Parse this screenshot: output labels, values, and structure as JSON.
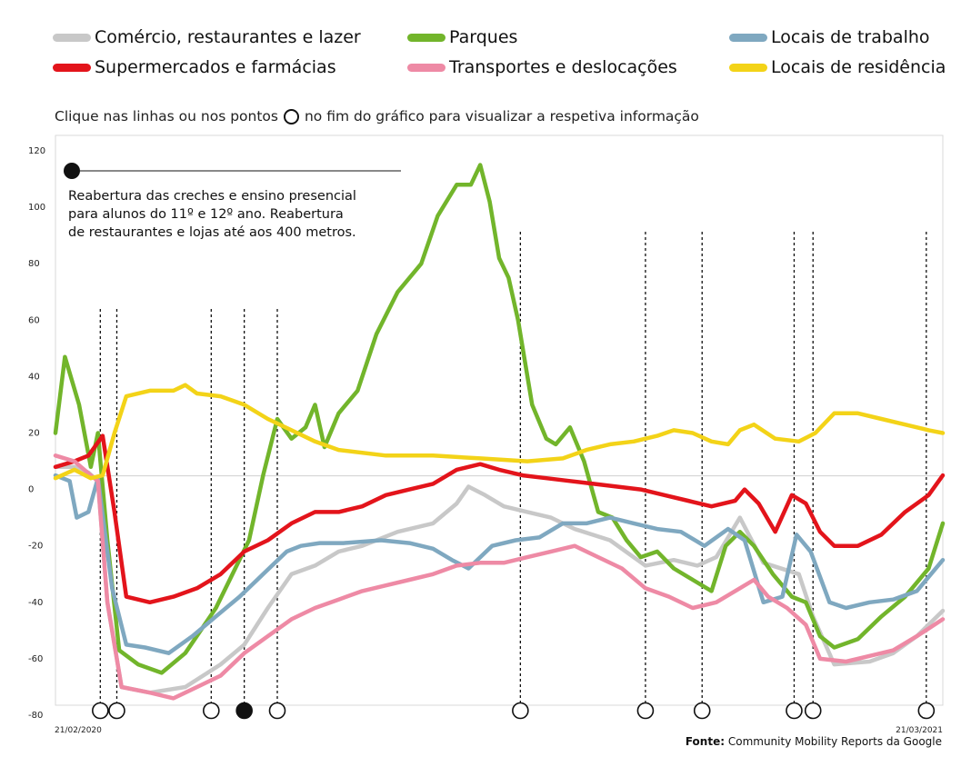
{
  "legend": [
    {
      "label": "Comércio, restaurantes e lazer",
      "color": "#c8c8c8"
    },
    {
      "label": "Parques",
      "color": "#72b52b"
    },
    {
      "label": "Locais de trabalho",
      "color": "#7fa8c0"
    },
    {
      "label": "Supermercados e farmácias",
      "color": "#e3141b"
    },
    {
      "label": "Transportes e deslocações",
      "color": "#ee8aa5"
    },
    {
      "label": "Locais de residência",
      "color": "#f3d318"
    }
  ],
  "instruction": {
    "before": "Clique nas linhas ou nos pontos",
    "after": "no fim do gráfico para visualizar a respetiva informação"
  },
  "annotation": {
    "lines": [
      "Reabertura das creches e ensino presencial",
      "para alunos do 11º e 12º ano. Reabertura",
      "de restaurantes e lojas até aos 400 metros."
    ]
  },
  "source": {
    "label": "Fonte:",
    "text": "Community Mobility Reports da Google"
  },
  "chart_data": {
    "type": "line",
    "ylim": [
      -80,
      120
    ],
    "yticks": [
      "120",
      "100",
      "80",
      "60",
      "40",
      "20",
      "0",
      "-20",
      "-40",
      "-60",
      "-80"
    ],
    "x_start_label": "21/02/2020",
    "x_end_label": "21/03/2021",
    "event_markers_day": [
      19,
      26,
      66,
      80,
      94,
      197,
      250,
      274,
      313,
      321,
      369
    ],
    "selected_marker_index": 3,
    "series": [
      {
        "name": "Comércio, restaurantes e lazer",
        "color": "#c8c8c8",
        "points": [
          [
            0,
            8
          ],
          [
            8,
            8
          ],
          [
            14,
            6
          ],
          [
            18,
            3
          ],
          [
            22,
            -40
          ],
          [
            28,
            -70
          ],
          [
            40,
            -72
          ],
          [
            55,
            -70
          ],
          [
            70,
            -62
          ],
          [
            80,
            -55
          ],
          [
            90,
            -42
          ],
          [
            100,
            -30
          ],
          [
            110,
            -27
          ],
          [
            120,
            -22
          ],
          [
            130,
            -20
          ],
          [
            145,
            -15
          ],
          [
            160,
            -12
          ],
          [
            170,
            -5
          ],
          [
            175,
            1
          ],
          [
            182,
            -2
          ],
          [
            190,
            -6
          ],
          [
            200,
            -8
          ],
          [
            210,
            -10
          ],
          [
            220,
            -14
          ],
          [
            235,
            -18
          ],
          [
            250,
            -27
          ],
          [
            262,
            -25
          ],
          [
            272,
            -27
          ],
          [
            280,
            -24
          ],
          [
            290,
            -10
          ],
          [
            300,
            -26
          ],
          [
            315,
            -30
          ],
          [
            321,
            -45
          ],
          [
            330,
            -62
          ],
          [
            345,
            -61
          ],
          [
            355,
            -58
          ],
          [
            365,
            -52
          ],
          [
            376,
            -43
          ]
        ]
      },
      {
        "name": "Parques",
        "color": "#72b52b",
        "points": [
          [
            0,
            20
          ],
          [
            4,
            47
          ],
          [
            10,
            30
          ],
          [
            15,
            8
          ],
          [
            18,
            20
          ],
          [
            22,
            -18
          ],
          [
            27,
            -57
          ],
          [
            35,
            -62
          ],
          [
            45,
            -65
          ],
          [
            55,
            -58
          ],
          [
            68,
            -42
          ],
          [
            75,
            -30
          ],
          [
            82,
            -18
          ],
          [
            88,
            5
          ],
          [
            94,
            25
          ],
          [
            100,
            18
          ],
          [
            106,
            22
          ],
          [
            110,
            30
          ],
          [
            114,
            15
          ],
          [
            120,
            27
          ],
          [
            128,
            35
          ],
          [
            136,
            55
          ],
          [
            145,
            70
          ],
          [
            155,
            80
          ],
          [
            162,
            97
          ],
          [
            170,
            108
          ],
          [
            176,
            108
          ],
          [
            180,
            115
          ],
          [
            184,
            102
          ],
          [
            188,
            82
          ],
          [
            192,
            75
          ],
          [
            196,
            60
          ],
          [
            202,
            30
          ],
          [
            208,
            18
          ],
          [
            212,
            16
          ],
          [
            218,
            22
          ],
          [
            224,
            10
          ],
          [
            230,
            -8
          ],
          [
            236,
            -10
          ],
          [
            242,
            -18
          ],
          [
            248,
            -24
          ],
          [
            255,
            -22
          ],
          [
            262,
            -28
          ],
          [
            270,
            -32
          ],
          [
            278,
            -36
          ],
          [
            284,
            -20
          ],
          [
            290,
            -15
          ],
          [
            296,
            -20
          ],
          [
            304,
            -30
          ],
          [
            312,
            -38
          ],
          [
            318,
            -40
          ],
          [
            324,
            -52
          ],
          [
            330,
            -56
          ],
          [
            340,
            -53
          ],
          [
            350,
            -45
          ],
          [
            360,
            -38
          ],
          [
            370,
            -28
          ],
          [
            376,
            -12
          ]
        ]
      },
      {
        "name": "Locais de trabalho",
        "color": "#7fa8c0",
        "points": [
          [
            0,
            5
          ],
          [
            6,
            3
          ],
          [
            9,
            -10
          ],
          [
            14,
            -8
          ],
          [
            18,
            4
          ],
          [
            24,
            -35
          ],
          [
            30,
            -55
          ],
          [
            38,
            -56
          ],
          [
            48,
            -58
          ],
          [
            58,
            -52
          ],
          [
            68,
            -45
          ],
          [
            78,
            -38
          ],
          [
            88,
            -30
          ],
          [
            98,
            -22
          ],
          [
            104,
            -20
          ],
          [
            112,
            -19
          ],
          [
            122,
            -19
          ],
          [
            138,
            -18
          ],
          [
            150,
            -19
          ],
          [
            160,
            -21
          ],
          [
            168,
            -25
          ],
          [
            175,
            -28
          ],
          [
            185,
            -20
          ],
          [
            195,
            -18
          ],
          [
            205,
            -17
          ],
          [
            215,
            -12
          ],
          [
            225,
            -12
          ],
          [
            235,
            -10
          ],
          [
            245,
            -12
          ],
          [
            255,
            -14
          ],
          [
            265,
            -15
          ],
          [
            275,
            -20
          ],
          [
            285,
            -14
          ],
          [
            292,
            -18
          ],
          [
            300,
            -40
          ],
          [
            308,
            -38
          ],
          [
            314,
            -16
          ],
          [
            320,
            -22
          ],
          [
            328,
            -40
          ],
          [
            335,
            -42
          ],
          [
            345,
            -40
          ],
          [
            355,
            -39
          ],
          [
            365,
            -36
          ],
          [
            376,
            -25
          ]
        ]
      },
      {
        "name": "Supermercados e farmácias",
        "color": "#e3141b",
        "points": [
          [
            0,
            8
          ],
          [
            8,
            10
          ],
          [
            14,
            12
          ],
          [
            20,
            19
          ],
          [
            25,
            -8
          ],
          [
            30,
            -38
          ],
          [
            40,
            -40
          ],
          [
            50,
            -38
          ],
          [
            60,
            -35
          ],
          [
            70,
            -30
          ],
          [
            80,
            -22
          ],
          [
            90,
            -18
          ],
          [
            100,
            -12
          ],
          [
            110,
            -8
          ],
          [
            120,
            -8
          ],
          [
            130,
            -6
          ],
          [
            140,
            -2
          ],
          [
            150,
            0
          ],
          [
            160,
            2
          ],
          [
            170,
            7
          ],
          [
            180,
            9
          ],
          [
            188,
            7
          ],
          [
            198,
            5
          ],
          [
            208,
            4
          ],
          [
            218,
            3
          ],
          [
            228,
            2
          ],
          [
            238,
            1
          ],
          [
            248,
            0
          ],
          [
            258,
            -2
          ],
          [
            268,
            -4
          ],
          [
            278,
            -6
          ],
          [
            288,
            -4
          ],
          [
            292,
            0
          ],
          [
            298,
            -5
          ],
          [
            305,
            -15
          ],
          [
            312,
            -2
          ],
          [
            318,
            -5
          ],
          [
            324,
            -15
          ],
          [
            330,
            -20
          ],
          [
            340,
            -20
          ],
          [
            350,
            -16
          ],
          [
            360,
            -8
          ],
          [
            370,
            -2
          ],
          [
            376,
            5
          ]
        ]
      },
      {
        "name": "Transportes e deslocações",
        "color": "#ee8aa5",
        "points": [
          [
            0,
            12
          ],
          [
            8,
            10
          ],
          [
            15,
            5
          ],
          [
            18,
            3
          ],
          [
            22,
            -40
          ],
          [
            28,
            -70
          ],
          [
            40,
            -72
          ],
          [
            50,
            -74
          ],
          [
            60,
            -70
          ],
          [
            70,
            -66
          ],
          [
            80,
            -58
          ],
          [
            90,
            -52
          ],
          [
            100,
            -46
          ],
          [
            110,
            -42
          ],
          [
            120,
            -39
          ],
          [
            130,
            -36
          ],
          [
            140,
            -34
          ],
          [
            150,
            -32
          ],
          [
            160,
            -30
          ],
          [
            170,
            -27
          ],
          [
            180,
            -26
          ],
          [
            190,
            -26
          ],
          [
            200,
            -24
          ],
          [
            210,
            -22
          ],
          [
            220,
            -20
          ],
          [
            230,
            -24
          ],
          [
            240,
            -28
          ],
          [
            250,
            -35
          ],
          [
            260,
            -38
          ],
          [
            270,
            -42
          ],
          [
            280,
            -40
          ],
          [
            290,
            -35
          ],
          [
            296,
            -32
          ],
          [
            302,
            -38
          ],
          [
            310,
            -42
          ],
          [
            318,
            -48
          ],
          [
            324,
            -60
          ],
          [
            335,
            -61
          ],
          [
            345,
            -59
          ],
          [
            355,
            -57
          ],
          [
            365,
            -52
          ],
          [
            376,
            -46
          ]
        ]
      },
      {
        "name": "Locais de residência",
        "color": "#f3d318",
        "points": [
          [
            0,
            4
          ],
          [
            8,
            7
          ],
          [
            15,
            4
          ],
          [
            20,
            5
          ],
          [
            25,
            20
          ],
          [
            30,
            33
          ],
          [
            40,
            35
          ],
          [
            50,
            35
          ],
          [
            55,
            37
          ],
          [
            60,
            34
          ],
          [
            70,
            33
          ],
          [
            80,
            30
          ],
          [
            90,
            25
          ],
          [
            100,
            21
          ],
          [
            110,
            17
          ],
          [
            120,
            14
          ],
          [
            140,
            12
          ],
          [
            160,
            12
          ],
          [
            180,
            11
          ],
          [
            200,
            10
          ],
          [
            215,
            11
          ],
          [
            225,
            14
          ],
          [
            235,
            16
          ],
          [
            245,
            17
          ],
          [
            255,
            19
          ],
          [
            262,
            21
          ],
          [
            270,
            20
          ],
          [
            278,
            17
          ],
          [
            285,
            16
          ],
          [
            290,
            21
          ],
          [
            296,
            23
          ],
          [
            305,
            18
          ],
          [
            315,
            17
          ],
          [
            322,
            20
          ],
          [
            330,
            27
          ],
          [
            340,
            27
          ],
          [
            350,
            25
          ],
          [
            360,
            23
          ],
          [
            370,
            21
          ],
          [
            376,
            20
          ]
        ]
      }
    ]
  }
}
